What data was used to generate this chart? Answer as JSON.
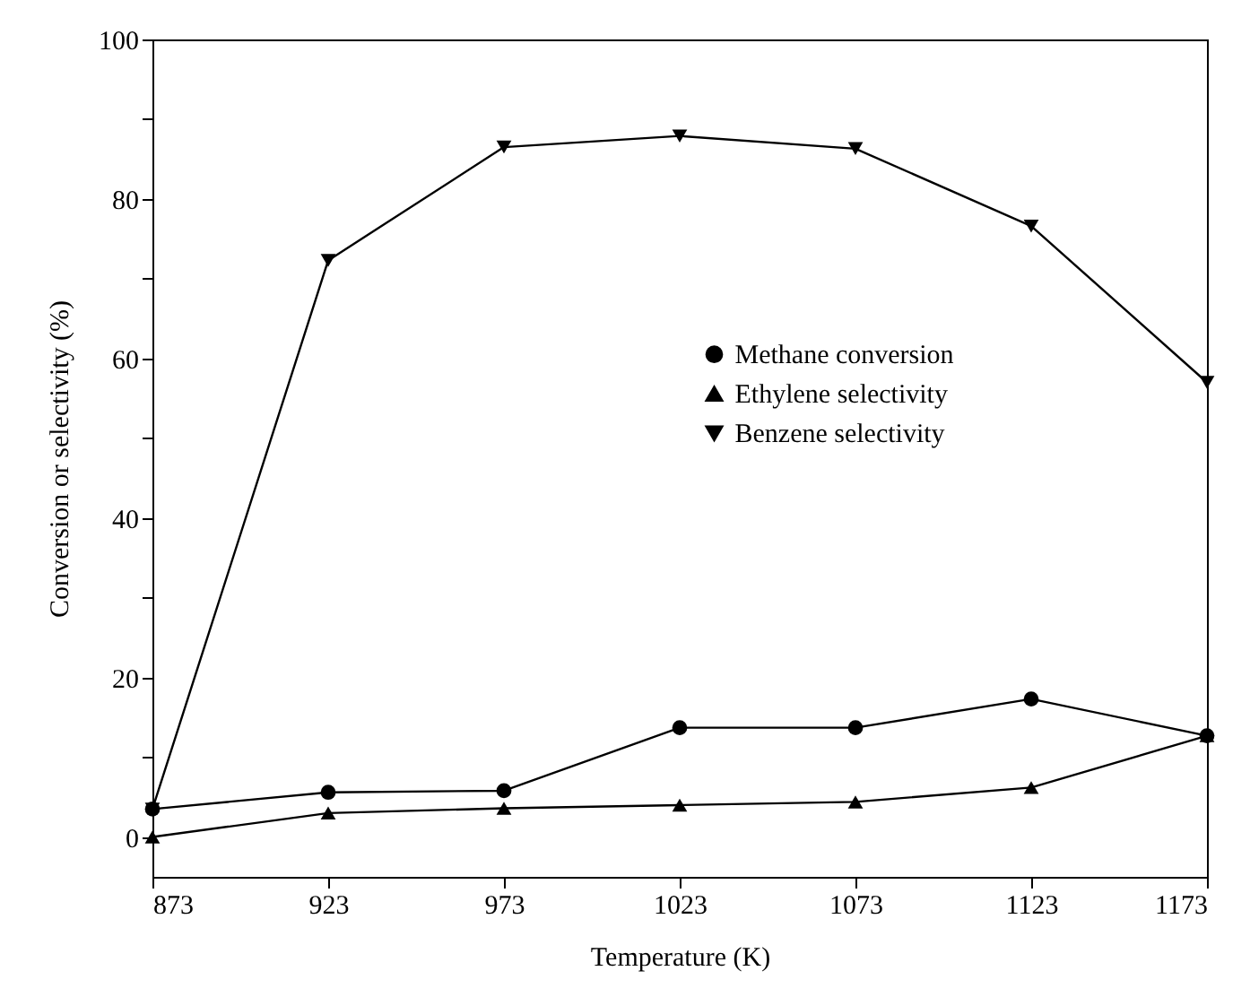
{
  "chart_data": {
    "type": "line",
    "xlabel": "Temperature (K)",
    "ylabel": "Conversion or selectivity (%)",
    "x": [
      873,
      923,
      973,
      1023,
      1073,
      1123,
      1173
    ],
    "series": [
      {
        "name": "Methane conversion",
        "color": "#000000",
        "marker": "circle",
        "values": [
          3.5,
          5.6,
          5.8,
          13.7,
          13.7,
          17.3,
          12.7
        ]
      },
      {
        "name": "Ethylene selectivity",
        "color": "#000000",
        "marker": "triangle",
        "values": [
          0,
          3.0,
          3.6,
          4.0,
          4.4,
          6.2,
          12.7
        ]
      },
      {
        "name": "Benzene selectivity",
        "color": "#000000",
        "marker": "triangle-down",
        "values": [
          3.5,
          72.3,
          86.5,
          87.9,
          86.3,
          76.6,
          57.0
        ]
      }
    ],
    "xlim": [
      873,
      1173
    ],
    "xticks": [
      873,
      923,
      973,
      1023,
      1073,
      1123,
      1173
    ],
    "ylim": [
      -5,
      100
    ],
    "yticks": [
      0,
      {
        "value": 10,
        "label": null
      },
      20,
      {
        "value": 30,
        "label": null
      },
      40,
      {
        "value": 50,
        "label": null
      },
      60,
      {
        "value": 70,
        "label": null
      },
      80,
      {
        "value": 90,
        "label": null
      },
      100
    ],
    "grid": false,
    "legend": "right",
    "line_style": "solid"
  }
}
